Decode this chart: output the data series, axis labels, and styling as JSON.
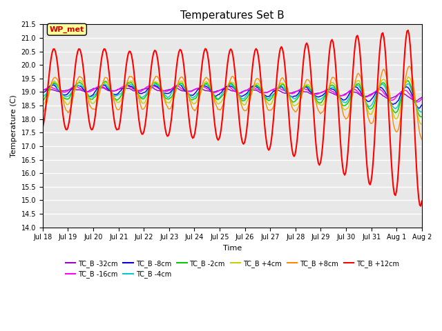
{
  "title": "Temperatures Set B",
  "xlabel": "Time",
  "ylabel": "Temperature (C)",
  "ylim": [
    14.0,
    21.5
  ],
  "yticks": [
    14.0,
    14.5,
    15.0,
    15.5,
    16.0,
    16.5,
    17.0,
    17.5,
    18.0,
    18.5,
    19.0,
    19.5,
    20.0,
    20.5,
    21.0,
    21.5
  ],
  "background_color": "#e8e8e8",
  "wp_met_label": "WP_met",
  "wp_met_color": "#cc0000",
  "wp_met_bg": "#ffff99",
  "series": [
    {
      "label": "TC_B -32cm",
      "color": "#9900cc",
      "lw": 1.0
    },
    {
      "label": "TC_B -16cm",
      "color": "#ff00ff",
      "lw": 1.0
    },
    {
      "label": "TC_B -8cm",
      "color": "#0000dd",
      "lw": 1.0
    },
    {
      "label": "TC_B -4cm",
      "color": "#00cccc",
      "lw": 1.0
    },
    {
      "label": "TC_B -2cm",
      "color": "#00cc00",
      "lw": 1.0
    },
    {
      "label": "TC_B +4cm",
      "color": "#cccc00",
      "lw": 1.0
    },
    {
      "label": "TC_B +8cm",
      "color": "#ff8800",
      "lw": 1.0
    },
    {
      "label": "TC_B +12cm",
      "color": "#ff0000",
      "lw": 1.5
    }
  ],
  "xtick_labels": [
    "Jul 18",
    "Jul 19",
    "Jul 20",
    "Jul 21",
    "Jul 22",
    "Jul 23",
    "Jul 24",
    "Jul 25",
    "Jul 26",
    "Jul 27",
    "Jul 28",
    "Jul 29",
    "Jul 30",
    "Jul 31",
    "Aug 1",
    "Aug 2"
  ],
  "xtick_positions": [
    0,
    1,
    2,
    3,
    4,
    5,
    6,
    7,
    8,
    9,
    10,
    11,
    12,
    13,
    14,
    15
  ]
}
